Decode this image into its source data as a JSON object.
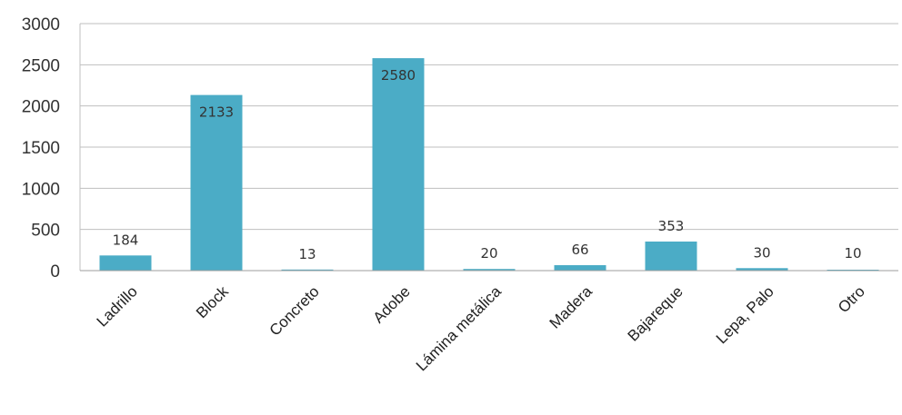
{
  "chart_data": {
    "type": "bar",
    "title": "",
    "xlabel": "",
    "ylabel": "",
    "categories": [
      "Ladrillo",
      "Block",
      "Concreto",
      "Adobe",
      "Lámina metálica",
      "Madera",
      "Bajareque",
      "Lepa, Palo",
      "Otro"
    ],
    "values": [
      184,
      2133,
      13,
      2580,
      20,
      66,
      353,
      30,
      10
    ],
    "data_labels": [
      "184",
      "2133",
      "13",
      "2580",
      "20",
      "66",
      "353",
      "30",
      "10"
    ],
    "ylim": [
      0,
      3000
    ],
    "yticks": [
      0,
      500,
      1000,
      1500,
      2000,
      2500,
      3000
    ],
    "ytick_labels": [
      "0",
      "500",
      "1000",
      "1500",
      "2000",
      "2500",
      "3000"
    ],
    "grid": true,
    "legend": "none",
    "bar_color": "#4BACC6",
    "grid_color": "#BFBFBF"
  }
}
